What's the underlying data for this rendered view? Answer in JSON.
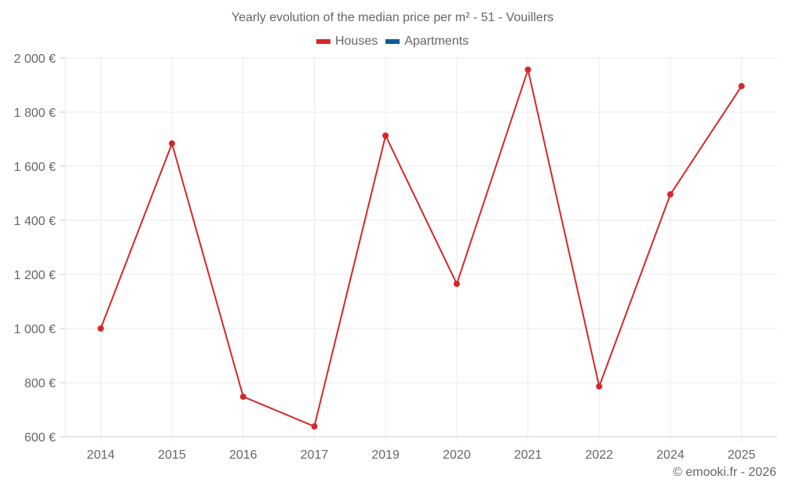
{
  "chart": {
    "title": "Yearly evolution of the median price per m² - 51 - Vouillers",
    "legend": [
      {
        "label": "Houses",
        "color": "#d62728"
      },
      {
        "label": "Apartments",
        "color": "#1f77b4"
      }
    ],
    "footer": "© emooki.fr - 2026"
  },
  "chart_data": {
    "type": "line",
    "title": "Yearly evolution of the median price per m² - 51 - Vouillers",
    "xlabel": "",
    "ylabel": "",
    "categories": [
      "2014",
      "2015",
      "2016",
      "2017",
      "2019",
      "2020",
      "2021",
      "2022",
      "2024",
      "2025"
    ],
    "series": [
      {
        "name": "Houses",
        "color": "#d62728",
        "values": [
          1000,
          1684,
          748,
          638,
          1713,
          1165,
          1957,
          786,
          1496,
          1896
        ]
      },
      {
        "name": "Apartments",
        "color": "#1f77b4",
        "values": []
      }
    ],
    "ylim": [
      600,
      2000
    ],
    "yticks": [
      600,
      800,
      1000,
      1200,
      1400,
      1600,
      1800,
      2000
    ],
    "ytick_labels": [
      "600 €",
      "800 €",
      "1 000 €",
      "1 200 €",
      "1 400 €",
      "1 600 €",
      "1 800 €",
      "2 000 €"
    ],
    "grid": true,
    "legend_position": "top"
  }
}
